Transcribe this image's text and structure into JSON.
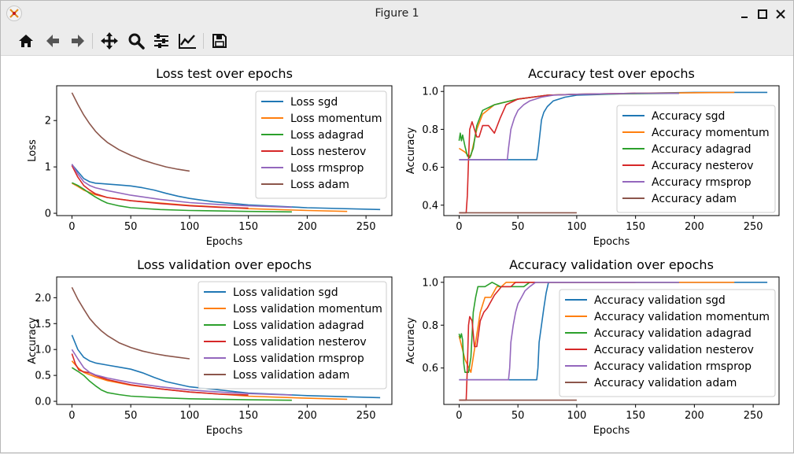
{
  "window": {
    "title": "Figure 1"
  },
  "toolbar": {
    "buttons": [
      {
        "name": "home-icon"
      },
      {
        "name": "back-icon"
      },
      {
        "name": "forward-icon"
      },
      {
        "name": "pan-icon"
      },
      {
        "name": "zoom-icon"
      },
      {
        "name": "configure-subplots-icon"
      },
      {
        "name": "edit-axis-icon"
      },
      {
        "name": "save-icon"
      }
    ]
  },
  "colors": {
    "sgd": "#1f77b4",
    "momentum": "#ff7f0e",
    "adagrad": "#2ca02c",
    "nesterov": "#d62728",
    "rmsprop": "#9467bd",
    "adam": "#8c564b"
  },
  "chart_data": [
    {
      "type": "line",
      "title": "Loss test over epochs",
      "xlabel": "Epochs",
      "ylabel": "Loss",
      "xlim": [
        -13,
        272
      ],
      "ylim": [
        -0.05,
        2.75
      ],
      "xticks": [
        0,
        50,
        100,
        150,
        200,
        250
      ],
      "yticks": [
        0,
        1,
        2
      ],
      "xtick_labels": [
        "0",
        "50",
        "100",
        "150",
        "200",
        "250"
      ],
      "ytick_labels": [
        "0",
        "1",
        "2"
      ],
      "legend": "upper right",
      "series": [
        {
          "name": "Loss sgd",
          "key": "sgd",
          "x": [
            0,
            5,
            10,
            15,
            20,
            30,
            40,
            50,
            60,
            70,
            80,
            90,
            100,
            120,
            150,
            200,
            262
          ],
          "y": [
            1.05,
            0.9,
            0.75,
            0.68,
            0.65,
            0.63,
            0.61,
            0.59,
            0.55,
            0.5,
            0.43,
            0.37,
            0.32,
            0.25,
            0.18,
            0.12,
            0.08
          ]
        },
        {
          "name": "Loss momentum",
          "key": "momentum",
          "x": [
            0,
            5,
            10,
            20,
            30,
            50,
            75,
            100,
            150,
            200,
            234
          ],
          "y": [
            0.65,
            0.58,
            0.5,
            0.4,
            0.34,
            0.27,
            0.22,
            0.17,
            0.1,
            0.06,
            0.04
          ]
        },
        {
          "name": "Loss adagrad",
          "key": "adagrad",
          "x": [
            0,
            5,
            10,
            15,
            20,
            25,
            30,
            40,
            50,
            75,
            100,
            150,
            187
          ],
          "y": [
            0.66,
            0.6,
            0.52,
            0.43,
            0.35,
            0.28,
            0.22,
            0.16,
            0.12,
            0.08,
            0.06,
            0.04,
            0.03
          ]
        },
        {
          "name": "Loss nesterov",
          "key": "nesterov",
          "x": [
            0,
            5,
            10,
            15,
            20,
            30,
            50,
            75,
            100,
            125,
            150
          ],
          "y": [
            1.03,
            0.78,
            0.6,
            0.5,
            0.42,
            0.34,
            0.27,
            0.21,
            0.16,
            0.13,
            0.11
          ]
        },
        {
          "name": "Loss rmsprop",
          "key": "rmsprop",
          "x": [
            0,
            5,
            10,
            15,
            20,
            30,
            50,
            75,
            100,
            125,
            150,
            187
          ],
          "y": [
            1.06,
            0.85,
            0.68,
            0.6,
            0.55,
            0.49,
            0.39,
            0.3,
            0.23,
            0.19,
            0.16,
            0.13
          ]
        },
        {
          "name": "Loss adam",
          "key": "adam",
          "x": [
            0,
            5,
            10,
            15,
            20,
            25,
            30,
            40,
            50,
            60,
            70,
            80,
            90,
            100
          ],
          "y": [
            2.6,
            2.35,
            2.12,
            1.93,
            1.77,
            1.64,
            1.53,
            1.37,
            1.25,
            1.15,
            1.07,
            1.0,
            0.95,
            0.91
          ]
        }
      ]
    },
    {
      "type": "line",
      "title": "Accuracy test over epochs",
      "xlabel": "Epochs",
      "ylabel": "Accuracy",
      "xlim": [
        -13,
        272
      ],
      "ylim": [
        0.345,
        1.03
      ],
      "xticks": [
        0,
        50,
        100,
        150,
        200,
        250
      ],
      "yticks": [
        0.4,
        0.6,
        0.8,
        1.0
      ],
      "xtick_labels": [
        "0",
        "50",
        "100",
        "150",
        "200",
        "250"
      ],
      "ytick_labels": [
        "0.4",
        "0.6",
        "0.8",
        "1.0"
      ],
      "legend": "center right",
      "series": [
        {
          "name": "Accuracy sgd",
          "key": "sgd",
          "x": [
            0,
            66,
            67,
            70,
            72,
            75,
            80,
            90,
            100,
            150,
            200,
            262
          ],
          "y": [
            0.64,
            0.64,
            0.68,
            0.85,
            0.89,
            0.92,
            0.95,
            0.97,
            0.98,
            0.99,
            0.995,
            0.995
          ]
        },
        {
          "name": "Accuracy momentum",
          "key": "momentum",
          "x": [
            0,
            5,
            8,
            10,
            15,
            20,
            30,
            50,
            75,
            100,
            150,
            234
          ],
          "y": [
            0.7,
            0.68,
            0.66,
            0.66,
            0.8,
            0.88,
            0.93,
            0.96,
            0.98,
            0.985,
            0.99,
            0.995
          ]
        },
        {
          "name": "Accuracy adagrad",
          "key": "adagrad",
          "x": [
            0,
            1,
            2,
            3,
            5,
            7,
            9,
            12,
            15,
            20,
            30,
            50,
            75,
            100,
            187
          ],
          "y": [
            0.74,
            0.78,
            0.74,
            0.77,
            0.71,
            0.66,
            0.65,
            0.7,
            0.82,
            0.9,
            0.93,
            0.96,
            0.98,
            0.985,
            0.99
          ]
        },
        {
          "name": "Accuracy nesterov",
          "key": "nesterov",
          "x": [
            0,
            6,
            7,
            8,
            9,
            11,
            13,
            15,
            17,
            20,
            25,
            30,
            35,
            40,
            50,
            75,
            100,
            150
          ],
          "y": [
            0.36,
            0.36,
            0.45,
            0.64,
            0.8,
            0.84,
            0.8,
            0.76,
            0.76,
            0.82,
            0.82,
            0.78,
            0.86,
            0.93,
            0.96,
            0.98,
            0.985,
            0.99
          ]
        },
        {
          "name": "Accuracy rmsprop",
          "key": "rmsprop",
          "x": [
            0,
            41,
            42,
            44,
            47,
            50,
            55,
            60,
            70,
            80,
            100,
            150,
            187
          ],
          "y": [
            0.64,
            0.64,
            0.7,
            0.8,
            0.86,
            0.9,
            0.93,
            0.95,
            0.97,
            0.98,
            0.985,
            0.99,
            0.99
          ]
        },
        {
          "name": "Accuracy adam",
          "key": "adam",
          "x": [
            0,
            100
          ],
          "y": [
            0.36,
            0.36
          ]
        }
      ]
    },
    {
      "type": "line",
      "title": "Loss validation  over epochs",
      "xlabel": "Epochs",
      "ylabel": "Accuracy",
      "xlim": [
        -13,
        272
      ],
      "ylim": [
        -0.06,
        2.4
      ],
      "xticks": [
        0,
        50,
        100,
        150,
        200,
        250
      ],
      "yticks": [
        0,
        0.5,
        1,
        1.5,
        2
      ],
      "xtick_labels": [
        "0",
        "50",
        "100",
        "150",
        "200",
        "250"
      ],
      "ytick_labels": [
        "0.0",
        "0.5",
        "1.0",
        "1.5",
        "2.0"
      ],
      "legend": "upper right",
      "series": [
        {
          "name": "Loss validation sgd",
          "key": "sgd",
          "x": [
            0,
            5,
            10,
            15,
            20,
            30,
            40,
            50,
            60,
            70,
            80,
            100,
            150,
            200,
            262
          ],
          "y": [
            1.28,
            1.0,
            0.85,
            0.78,
            0.74,
            0.7,
            0.66,
            0.62,
            0.55,
            0.46,
            0.38,
            0.28,
            0.16,
            0.11,
            0.07
          ]
        },
        {
          "name": "Loss validation momentum",
          "key": "momentum",
          "x": [
            0,
            5,
            10,
            20,
            30,
            50,
            75,
            100,
            150,
            200,
            234
          ],
          "y": [
            0.78,
            0.65,
            0.56,
            0.47,
            0.4,
            0.31,
            0.24,
            0.18,
            0.1,
            0.06,
            0.04
          ]
        },
        {
          "name": "Loss validation adagrad",
          "key": "adagrad",
          "x": [
            0,
            5,
            10,
            15,
            20,
            25,
            30,
            40,
            50,
            75,
            100,
            150,
            187
          ],
          "y": [
            0.65,
            0.58,
            0.5,
            0.39,
            0.3,
            0.22,
            0.17,
            0.13,
            0.1,
            0.07,
            0.05,
            0.03,
            0.02
          ]
        },
        {
          "name": "Loss validation nesterov",
          "key": "nesterov",
          "x": [
            0,
            3,
            6,
            10,
            15,
            20,
            30,
            50,
            75,
            100,
            125,
            150
          ],
          "y": [
            0.92,
            0.72,
            0.6,
            0.57,
            0.55,
            0.5,
            0.42,
            0.32,
            0.24,
            0.18,
            0.14,
            0.12
          ]
        },
        {
          "name": "Loss validation rmsprop",
          "key": "rmsprop",
          "x": [
            0,
            5,
            10,
            15,
            20,
            30,
            50,
            75,
            100,
            125,
            150,
            187
          ],
          "y": [
            1.0,
            0.82,
            0.65,
            0.56,
            0.51,
            0.45,
            0.36,
            0.28,
            0.22,
            0.18,
            0.15,
            0.12
          ]
        },
        {
          "name": "Loss validation adam",
          "key": "adam",
          "x": [
            0,
            5,
            10,
            15,
            20,
            25,
            30,
            40,
            50,
            60,
            70,
            80,
            90,
            100
          ],
          "y": [
            2.2,
            1.97,
            1.78,
            1.6,
            1.47,
            1.36,
            1.27,
            1.13,
            1.04,
            0.97,
            0.92,
            0.88,
            0.85,
            0.82
          ]
        }
      ]
    },
    {
      "type": "line",
      "title": "Accuracy validation over epochs",
      "xlabel": "Epochs",
      "ylabel": "Accuracy",
      "xlim": [
        -13,
        272
      ],
      "ylim": [
        0.43,
        1.025
      ],
      "xticks": [
        0,
        50,
        100,
        150,
        200,
        250
      ],
      "yticks": [
        0.6,
        0.8,
        1.0
      ],
      "xtick_labels": [
        "0",
        "50",
        "100",
        "150",
        "200",
        "250"
      ],
      "ytick_labels": [
        "0.6",
        "0.8",
        "1.0"
      ],
      "legend": "center right",
      "series": [
        {
          "name": "Accuracy validation sgd",
          "key": "sgd",
          "x": [
            0,
            66,
            67,
            68,
            70,
            72,
            74,
            76,
            262
          ],
          "y": [
            0.545,
            0.545,
            0.6,
            0.72,
            0.8,
            0.88,
            0.95,
            1.0,
            1.0
          ]
        },
        {
          "name": "Accuracy validation momentum",
          "key": "momentum",
          "x": [
            0,
            5,
            10,
            14,
            18,
            22,
            27,
            32,
            36,
            40,
            45,
            50,
            234
          ],
          "y": [
            0.75,
            0.64,
            0.58,
            0.72,
            0.86,
            0.93,
            0.93,
            0.98,
            0.98,
            1.0,
            1.0,
            1.0,
            1.0
          ]
        },
        {
          "name": "Accuracy validation adagrad",
          "key": "adagrad",
          "x": [
            0,
            1,
            2,
            3,
            4,
            5,
            8,
            10,
            12,
            14,
            16,
            18,
            22,
            28,
            35,
            45,
            55,
            60,
            187
          ],
          "y": [
            0.76,
            0.74,
            0.76,
            0.73,
            0.62,
            0.58,
            0.58,
            0.65,
            0.86,
            0.93,
            0.98,
            0.98,
            0.98,
            1.0,
            0.98,
            0.98,
            0.98,
            1.0,
            1.0
          ]
        },
        {
          "name": "Accuracy validation nesterov",
          "key": "nesterov",
          "x": [
            0,
            6,
            7,
            8,
            9,
            11,
            13,
            15,
            18,
            21,
            24,
            26,
            28,
            30,
            33,
            36,
            40,
            44,
            48,
            52,
            56,
            60,
            150
          ],
          "y": [
            0.45,
            0.45,
            0.6,
            0.8,
            0.84,
            0.82,
            0.7,
            0.7,
            0.82,
            0.86,
            0.88,
            0.9,
            0.92,
            0.94,
            0.96,
            0.98,
            0.98,
            0.98,
            1.0,
            1.0,
            1.0,
            1.0,
            1.0
          ]
        },
        {
          "name": "Accuracy validation rmsprop",
          "key": "rmsprop",
          "x": [
            0,
            42,
            43,
            44,
            46,
            48,
            50,
            53,
            56,
            60,
            65,
            70,
            187
          ],
          "y": [
            0.545,
            0.545,
            0.6,
            0.72,
            0.8,
            0.86,
            0.9,
            0.93,
            0.96,
            0.98,
            1.0,
            1.0,
            1.0
          ]
        },
        {
          "name": "Accuracy validation adam",
          "key": "adam",
          "x": [
            0,
            100
          ],
          "y": [
            0.45,
            0.45
          ]
        }
      ]
    }
  ]
}
